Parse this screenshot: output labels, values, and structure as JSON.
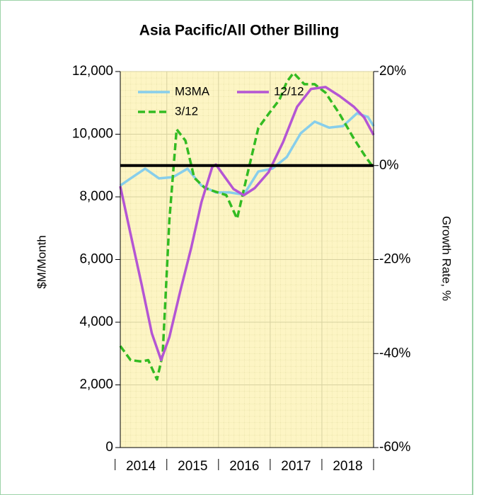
{
  "chart_data": {
    "type": "line",
    "title": "Asia Pacific/All Other Billing",
    "ylabel": "$M/Month",
    "y2label": "Growth Rate, %",
    "xlim": [
      2014.1,
      2019
    ],
    "xticks": [
      2014,
      2015,
      2016,
      2017,
      2018,
      2019
    ],
    "year_labels": [
      "2014",
      "2015",
      "2016",
      "2017",
      "2018"
    ],
    "ylim": [
      0,
      12000
    ],
    "yticks": [
      0,
      {
        "value": 2000,
        "label": "2,000"
      },
      {
        "value": 4000,
        "label": "4,000"
      },
      {
        "value": 6000,
        "label": "6,000"
      },
      {
        "value": 8000,
        "label": "8,000"
      },
      {
        "value": 10000,
        "label": "10,000"
      },
      {
        "value": 12000,
        "label": "12,000"
      }
    ],
    "y2lim": [
      -60,
      20
    ],
    "y2ticks": [
      {
        "value": -60,
        "label": "-60%"
      },
      {
        "value": -40,
        "label": "-40%"
      },
      {
        "value": -20,
        "label": "-20%"
      },
      {
        "value": 0,
        "label": "0%"
      },
      {
        "value": 20,
        "label": "20%"
      }
    ],
    "hline_y2": 0,
    "grid": true,
    "legend": "upper left",
    "series": [
      {
        "name": "M3MA",
        "color": "#87ceeb",
        "dash": false,
        "x": [
          2014.1,
          2014.3,
          2014.58,
          2014.85,
          2015.12,
          2015.4,
          2015.67,
          2015.95,
          2016.22,
          2016.49,
          2016.77,
          2017.04,
          2017.32,
          2017.59,
          2017.86,
          2018.14,
          2018.41,
          2018.68,
          2018.89,
          2019.0
        ],
        "values": [
          8360,
          8590,
          8900,
          8590,
          8630,
          8900,
          8360,
          8140,
          8140,
          8070,
          8810,
          8900,
          9270,
          10030,
          10400,
          10210,
          10260,
          10670,
          10550,
          10260
        ]
      },
      {
        "name": "12/12",
        "color": "#b455d4",
        "dash": false,
        "axis": "y2",
        "x": [
          2014.1,
          2014.3,
          2014.51,
          2014.71,
          2014.89,
          2015.05,
          2015.26,
          2015.47,
          2015.67,
          2015.88,
          2015.95,
          2016.08,
          2016.29,
          2016.49,
          2016.7,
          2016.97,
          2017.25,
          2017.52,
          2017.79,
          2018.07,
          2018.34,
          2018.62,
          2018.82,
          2019.0
        ],
        "values": [
          -4.4,
          -14.6,
          -25.2,
          -35.7,
          -41.4,
          -36.5,
          -26.7,
          -17.6,
          -7.8,
          -0.3,
          0.2,
          -1.8,
          -5.0,
          -6.3,
          -4.8,
          -1.4,
          5.0,
          12.5,
          16.3,
          16.7,
          14.8,
          12.5,
          10.2,
          6.5
        ]
      },
      {
        "name": "3/12",
        "color": "#33bb22",
        "dash": true,
        "axis": "y2",
        "x": [
          2014.1,
          2014.3,
          2014.51,
          2014.64,
          2014.81,
          2014.92,
          2015.05,
          2015.19,
          2015.36,
          2015.53,
          2015.74,
          2015.95,
          2016.15,
          2016.36,
          2016.56,
          2016.77,
          2016.97,
          2017.18,
          2017.32,
          2017.45,
          2017.66,
          2017.86,
          2018.07,
          2018.34,
          2018.62,
          2018.82,
          2019.0
        ],
        "values": [
          -38.4,
          -41.4,
          -41.7,
          -41.4,
          -45.5,
          -40.2,
          -11.6,
          7.7,
          5.3,
          -2.6,
          -4.8,
          -5.6,
          -6.3,
          -11.3,
          -1.8,
          8.0,
          11.0,
          14.0,
          17.8,
          19.7,
          17.3,
          17.3,
          15.5,
          11.0,
          5.7,
          2.3,
          -0.5
        ]
      }
    ]
  }
}
